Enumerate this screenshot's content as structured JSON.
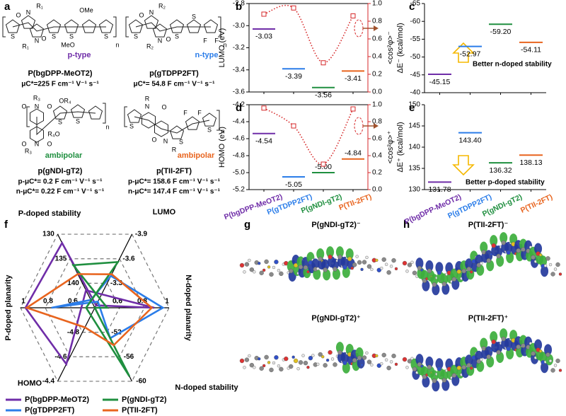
{
  "figure": {
    "panel_labels": [
      "a",
      "b",
      "c",
      "d",
      "e",
      "f",
      "g",
      "h"
    ],
    "structures": [
      {
        "atoms": [
          "N",
          "R₁",
          "O",
          "O",
          "N",
          "R₁",
          "S",
          "S",
          "S",
          "OMe",
          "MeO",
          "S",
          "n"
        ],
        "class": "p-type",
        "color": "#6f2da8",
        "name": "P(bgDPP-MeOT2)",
        "mobility": [
          "μC*=225 F cm⁻¹ V⁻¹ s⁻¹"
        ]
      },
      {
        "atoms": [
          "N",
          "R₂",
          "O",
          "O",
          "N",
          "R₂",
          "S",
          "S",
          "S",
          "F",
          "F",
          "n"
        ],
        "class": "n-type",
        "color": "#2b7de9",
        "name": "p(gTDPP2FT)",
        "mobility": [
          "μC*= 54.8 F cm⁻¹ V⁻¹ s⁻¹"
        ]
      },
      {
        "atoms": [
          "R₃",
          "O",
          "N",
          "O",
          "OR₄",
          "S",
          "S",
          "R₄O",
          "O",
          "N",
          "O",
          "R₃",
          "n"
        ],
        "class": "ambipolar",
        "color": "#1f8f3f",
        "name": "p(gNDI-gT2)",
        "mobility": [
          "p-μC*= 0.2 F cm⁻¹ V⁻¹ s⁻¹",
          "n-μC*= 0.22 F cm⁻¹ V⁻¹ s⁻¹"
        ]
      },
      {
        "atoms": [
          "R",
          "N",
          "O",
          "S",
          "S",
          "F",
          "F",
          "S",
          "O",
          "N",
          "R",
          "n"
        ],
        "class": "ambipolar",
        "color": "#e8641e",
        "name": "p(TII-2FT)",
        "mobility": [
          "p-μC*= 158.6 F cm⁻¹ V⁻¹ s⁻¹",
          "n-μC*= 147.4 F cm⁻¹ V⁻¹ s⁻¹"
        ]
      }
    ],
    "orbitals": [
      "P(gNDI-gT2)⁻",
      "P(TII-2FT)⁻",
      "P(gNDI-gT2)⁺",
      "P(TII-2FT)⁺"
    ]
  },
  "chart_data": [
    {
      "type": "energy_level",
      "ylabel": "LUMO (eV)",
      "ylim": [
        -3.6,
        -2.8
      ],
      "yticks": [
        -3.6,
        -3.4,
        -3.2,
        {
          "value": -3,
          "label": "-3.0"
        },
        -2.8
      ],
      "values": [
        -3.03,
        -3.39,
        -3.56,
        -3.41
      ],
      "colors": [
        "#6f2da8",
        "#2b7de9",
        "#1f8f3f",
        "#e8641e"
      ],
      "y2label": "<cos²φ>⁻",
      "y2lim": [
        0,
        1
      ],
      "y2ticks": [
        {
          "value": 0,
          "label": "0.0"
        },
        0.2,
        0.4,
        0.6,
        0.8,
        {
          "value": 1,
          "label": "1.0"
        }
      ],
      "curve": {
        "values": [
          0.88,
          0.95,
          0.33,
          0.86
        ],
        "axis": "y2",
        "color": "#d62728"
      }
    },
    {
      "type": "energy_level",
      "ylabel": "ΔE⁻ (kcal/mol)",
      "ylim": [
        -40,
        -65
      ],
      "yticks": [
        -65,
        -60,
        -55,
        -50,
        -45,
        -40
      ],
      "values": [
        -45.15,
        -52.97,
        -59.2,
        -54.11
      ],
      "value_labels": [
        "-45.15",
        "-52.97",
        "-59.20",
        "-54.11"
      ],
      "colors": [
        "#6f2da8",
        "#2b7de9",
        "#1f8f3f",
        "#e8641e"
      ],
      "annotation": "Better n-doped stability"
    },
    {
      "type": "energy_level",
      "ylabel": "HOMO (eV)",
      "ylim": [
        -5.2,
        -4.2
      ],
      "yticks": [
        -5.2,
        {
          "value": -5,
          "label": "-5.0"
        },
        -4.8,
        -4.6,
        -4.4,
        -4.2
      ],
      "categories": [
        "P(bgDPP-MeOT2)",
        "P(gTDPP2FT)",
        "P(gNDI-gT2)",
        "P(TII-2FT)"
      ],
      "values": [
        -4.54,
        -5.05,
        -5,
        -4.84
      ],
      "value_labels": [
        "-4.54",
        "-5.05",
        "-5.00",
        "-4.84"
      ],
      "colors": [
        "#6f2da8",
        "#2b7de9",
        "#1f8f3f",
        "#e8641e"
      ],
      "y2label": "<cos²φ>⁺",
      "y2lim": [
        0,
        1
      ],
      "y2ticks": [
        {
          "value": 0,
          "label": "0.0"
        },
        0.2,
        0.4,
        0.6,
        0.8,
        {
          "value": 1,
          "label": "1.0"
        }
      ],
      "curve": {
        "values": [
          0.96,
          0.75,
          0.3,
          0.95
        ],
        "axis": "y2",
        "color": "#d62728"
      }
    },
    {
      "type": "energy_level",
      "ylabel": "ΔE⁺ (kcal/mol)",
      "ylim": [
        130,
        150
      ],
      "yticks": [
        130,
        135,
        140,
        145,
        150
      ],
      "categories": [
        "P(bgDPP-MeOT2)",
        "P(gTDPP2FT)",
        "P(gNDI-gT2)",
        "P(TII-2FT)"
      ],
      "values": [
        131.78,
        143.4,
        136.32,
        138.13
      ],
      "value_labels": [
        "131.78",
        "143.40",
        "136.32",
        "138.13"
      ],
      "colors": [
        "#6f2da8",
        "#2b7de9",
        "#1f8f3f",
        "#e8641e"
      ],
      "annotation": "Better p-doped stability"
    },
    {
      "type": "radar",
      "axes": [
        {
          "label": "LUMO",
          "lim": [
            -3,
            -3.9
          ],
          "ticks": [
            -3.3,
            -3.6,
            -3.9
          ]
        },
        {
          "label": "N-doped planarity",
          "lim": [
            0.4,
            1
          ],
          "ticks": [
            0.6,
            0.8,
            1
          ]
        },
        {
          "label": "N-doped stability",
          "lim": [
            -48,
            -60
          ],
          "ticks": [
            -52,
            -56,
            -60
          ]
        },
        {
          "label": "HOMO",
          "lim": [
            -5,
            -4.4
          ],
          "ticks": [
            -4.8,
            -4.6,
            -4.4
          ]
        },
        {
          "label": "P-doped planarity",
          "lim": [
            0.4,
            1
          ],
          "ticks": [
            0.6,
            0.8,
            1
          ]
        },
        {
          "label": "P-doped stability",
          "lim": [
            145,
            130
          ],
          "ticks": [
            140,
            135,
            130
          ]
        }
      ],
      "series": [
        {
          "name": "P(bgDPP-MeOT2)",
          "color": "#6f2da8",
          "values": [
            -3.03,
            0.88,
            -45.15,
            -4.54,
            0.96,
            131.78
          ]
        },
        {
          "name": "P(gTDPP2FT)",
          "color": "#2b7de9",
          "values": [
            -3.39,
            0.95,
            -52.97,
            -5.05,
            0.75,
            143.4
          ]
        },
        {
          "name": "P(gNDI-gT2)",
          "color": "#1f8f3f",
          "values": [
            -3.56,
            0.33,
            -59.2,
            -5,
            0.3,
            136.32
          ]
        },
        {
          "name": "P(TII-2FT)",
          "color": "#e8641e",
          "values": [
            -3.41,
            0.86,
            -54.11,
            -4.84,
            0.95,
            138.13
          ]
        }
      ]
    }
  ]
}
